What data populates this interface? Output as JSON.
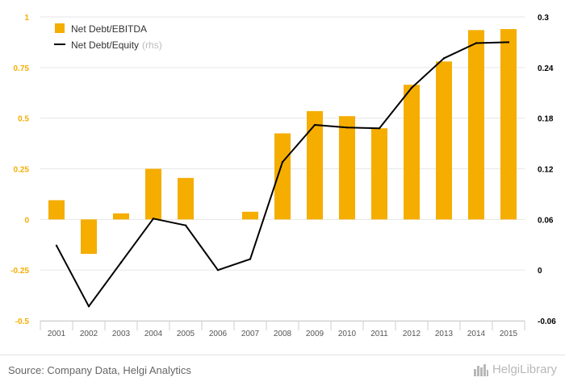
{
  "chart_data": {
    "type": "bar",
    "categories": [
      "2001",
      "2002",
      "2003",
      "2004",
      "2005",
      "2006",
      "2007",
      "2008",
      "2009",
      "2010",
      "2011",
      "2012",
      "2013",
      "2014",
      "2015"
    ],
    "series": [
      {
        "name": "Net Debt/EBITDA",
        "type": "bar",
        "axis": "left",
        "color": "#f5ad00",
        "values": [
          0.095,
          -0.17,
          0.03,
          0.25,
          0.205,
          null,
          0.038,
          0.425,
          0.535,
          0.51,
          0.45,
          0.665,
          0.78,
          0.935,
          0.94
        ]
      },
      {
        "name": "Net Debt/Equity",
        "name_suffix": "(rhs)",
        "type": "line",
        "axis": "right",
        "color": "#000000",
        "values": [
          0.029,
          -0.043,
          0.009,
          0.061,
          0.053,
          0.0,
          0.013,
          0.128,
          0.172,
          0.169,
          0.168,
          0.216,
          0.251,
          0.269,
          0.27
        ]
      }
    ],
    "y_left": {
      "min": -0.5,
      "max": 1,
      "ticks": [
        "-0.5",
        "-0.25",
        "0",
        "0.25",
        "0.5",
        "0.75",
        "1"
      ],
      "tick_color": "#f5ad00"
    },
    "y_right": {
      "min": -0.06,
      "max": 0.3,
      "ticks": [
        "-0.06",
        "0",
        "0.06",
        "0.12",
        "0.18",
        "0.24",
        "0.3"
      ],
      "tick_color": "#000000"
    },
    "grid": true,
    "legend_position": "top-left"
  },
  "footer": {
    "source": "Source: Company Data, Helgi Analytics",
    "brand": "HelgiLibrary",
    "brand_icon": "city-skyline-icon"
  }
}
